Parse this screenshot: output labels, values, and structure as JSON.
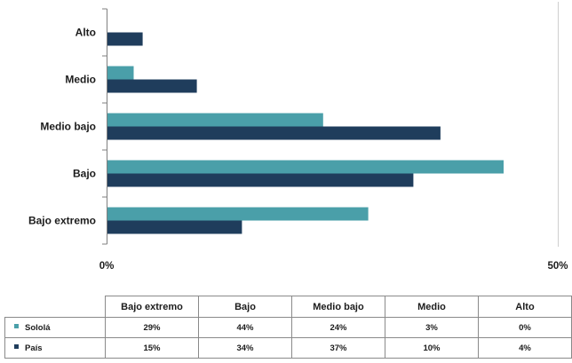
{
  "chart_data": {
    "type": "bar",
    "orientation": "horizontal",
    "categories": [
      "Bajo extremo",
      "Bajo",
      "Medio bajo",
      "Medio",
      "Alto"
    ],
    "series": [
      {
        "name": "Sololá",
        "color": "#4a9fa9",
        "values": [
          29,
          44,
          24,
          3,
          0
        ],
        "labels": [
          "29%",
          "44%",
          "24%",
          "3%",
          "0%"
        ]
      },
      {
        "name": "País",
        "color": "#1f3d5c",
        "values": [
          15,
          34,
          37,
          10,
          4
        ],
        "labels": [
          "15%",
          "34%",
          "37%",
          "10%",
          "4%"
        ]
      }
    ],
    "xlim": [
      0,
      50
    ],
    "x_ticks": [
      {
        "value": 0,
        "label": "0%"
      },
      {
        "value": 50,
        "label": "50%"
      }
    ],
    "grid": false,
    "legend": "bottom",
    "data_table": true
  }
}
